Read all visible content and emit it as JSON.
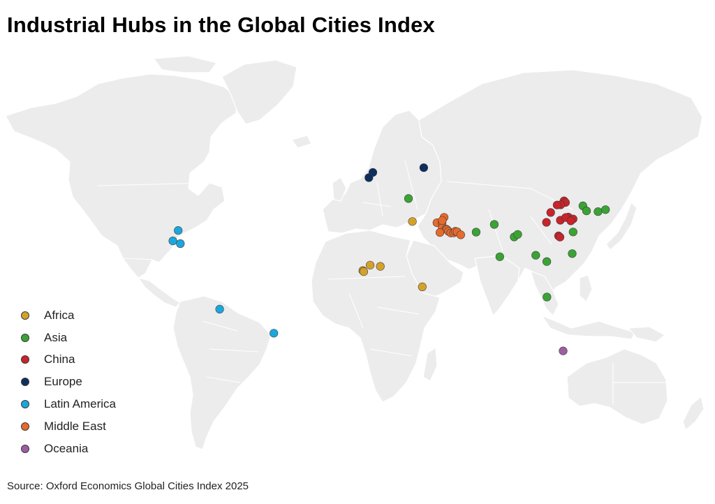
{
  "title": "Industrial Hubs in the Global Cities Index",
  "source": "Source: Oxford Economics Global Cities Index 2025",
  "legend": [
    {
      "label": "Africa",
      "color": "#d4a22a"
    },
    {
      "label": "Asia",
      "color": "#3aa334"
    },
    {
      "label": "China",
      "color": "#c8242b"
    },
    {
      "label": "Europe",
      "color": "#0d2f5f"
    },
    {
      "label": "Latin America",
      "color": "#1ba7dc"
    },
    {
      "label": "Middle East",
      "color": "#e56a2c"
    },
    {
      "label": "Oceania",
      "color": "#9a5fa0"
    }
  ],
  "regions": {
    "Africa": [
      [
        31.2,
        30.0
      ],
      [
        3.4,
        6.5
      ],
      [
        7.5,
        9.1
      ],
      [
        3.9,
        6.0
      ],
      [
        13.2,
        8.5
      ],
      [
        36.8,
        -1.3
      ]
    ],
    "Asia": [
      [
        29.0,
        41.0
      ],
      [
        127.0,
        37.5
      ],
      [
        129.0,
        35.1
      ],
      [
        135.5,
        34.7
      ],
      [
        139.7,
        35.7
      ],
      [
        67.0,
        24.9
      ],
      [
        77.2,
        28.6
      ],
      [
        80.3,
        13.1
      ],
      [
        88.4,
        22.6
      ],
      [
        90.4,
        23.8
      ],
      [
        100.5,
        13.8
      ],
      [
        106.7,
        10.8
      ],
      [
        121.5,
        25.0
      ],
      [
        121.0,
        14.6
      ],
      [
        106.8,
        -6.2
      ]
    ],
    "China": [
      [
        116.4,
        39.9
      ],
      [
        117.2,
        39.1
      ],
      [
        114.5,
        38.0
      ],
      [
        112.5,
        37.9
      ],
      [
        108.9,
        34.3
      ],
      [
        114.3,
        30.6
      ],
      [
        118.8,
        32.1
      ],
      [
        121.5,
        31.2
      ],
      [
        106.5,
        29.6
      ],
      [
        113.3,
        23.1
      ],
      [
        114.1,
        22.5
      ],
      [
        117.3,
        31.9
      ],
      [
        120.2,
        30.3
      ]
    ],
    "Europe": [
      [
        9.0,
        53.5
      ],
      [
        6.8,
        51.0
      ],
      [
        37.6,
        55.8
      ]
    ],
    "Latin America": [
      [
        -100.3,
        25.7
      ],
      [
        -103.3,
        20.7
      ],
      [
        -99.1,
        19.4
      ],
      [
        -77.0,
        -12.0
      ],
      [
        -46.6,
        -23.5
      ]
    ],
    "Middle East": [
      [
        45.0,
        29.4
      ],
      [
        47.9,
        29.4
      ],
      [
        48.0,
        27.0
      ],
      [
        50.1,
        26.4
      ],
      [
        50.6,
        26.2
      ],
      [
        51.5,
        25.3
      ],
      [
        52.8,
        24.5
      ],
      [
        54.4,
        24.5
      ],
      [
        55.3,
        25.3
      ],
      [
        56.3,
        25.1
      ],
      [
        58.4,
        23.6
      ],
      [
        46.7,
        24.7
      ],
      [
        49.0,
        32.0
      ],
      [
        48.0,
        30.5
      ]
    ],
    "Oceania": [
      [
        115.9,
        -32.0
      ]
    ]
  }
}
